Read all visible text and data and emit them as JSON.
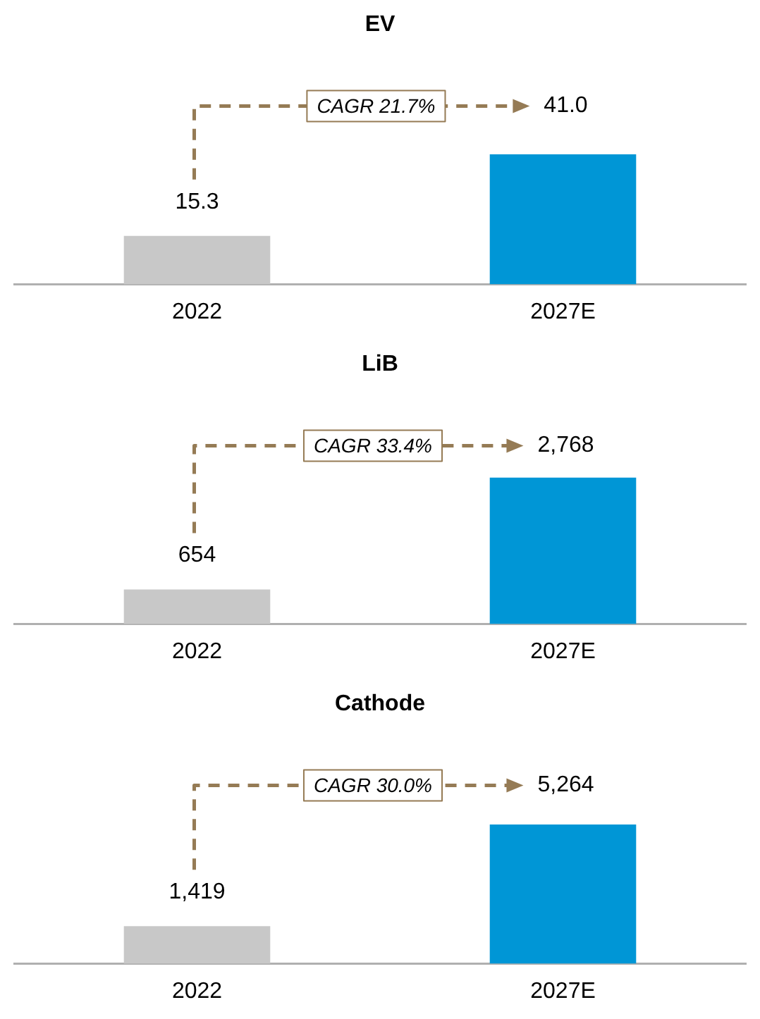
{
  "chart_data": [
    {
      "type": "bar",
      "title": "EV",
      "categories": [
        "2022",
        "2027E"
      ],
      "values": [
        15.3,
        41.0
      ],
      "value_labels": [
        "15.3",
        "41.0"
      ],
      "colors": [
        "#c8c8c8",
        "#0096d6"
      ],
      "annotations": [
        "CAGR 21.7%"
      ]
    },
    {
      "type": "bar",
      "title": "LiB",
      "categories": [
        "2022",
        "2027E"
      ],
      "values": [
        654,
        2768
      ],
      "value_labels": [
        "654",
        "2,768"
      ],
      "colors": [
        "#c8c8c8",
        "#0096d6"
      ],
      "annotations": [
        "CAGR 33.4%"
      ]
    },
    {
      "type": "bar",
      "title": "Cathode",
      "categories": [
        "2022",
        "2027E"
      ],
      "values": [
        1419,
        5264
      ],
      "value_labels": [
        "1,419",
        "5,264"
      ],
      "colors": [
        "#c8c8c8",
        "#0096d6"
      ],
      "annotations": [
        "CAGR 30.0%"
      ]
    }
  ]
}
